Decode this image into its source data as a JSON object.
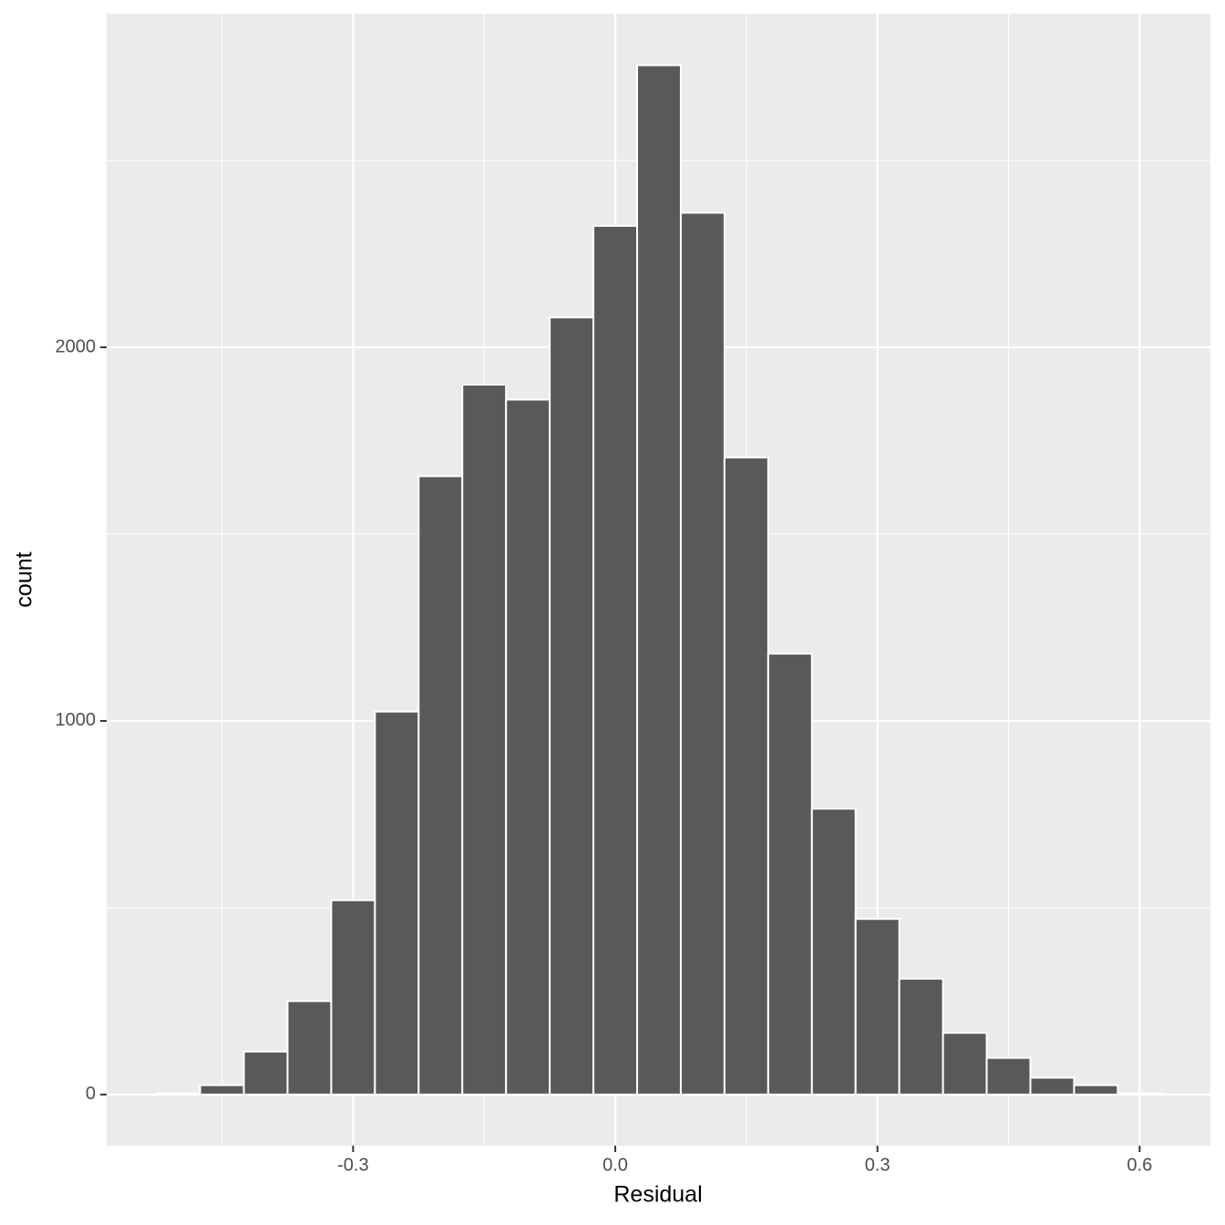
{
  "chart_data": {
    "type": "histogram",
    "x_label": "Residual",
    "y_label": "count",
    "bins": [
      -0.525,
      -0.475,
      -0.425,
      -0.375,
      -0.325,
      -0.275,
      -0.225,
      -0.175,
      -0.125,
      -0.075,
      -0.025,
      0.025,
      0.075,
      0.125,
      0.175,
      0.225,
      0.275,
      0.325,
      0.375,
      0.425,
      0.475,
      0.525,
      0.575,
      0.625
    ],
    "values": [
      3,
      25,
      115,
      250,
      520,
      1025,
      1655,
      1900,
      1860,
      2080,
      2325,
      2755,
      2360,
      1705,
      1180,
      765,
      470,
      310,
      165,
      98,
      45,
      25,
      3
    ],
    "color": "#595959",
    "xlim": [
      -0.582,
      0.681
    ],
    "ylim": [
      -137,
      2893
    ],
    "xticks": [
      -0.3,
      {
        "value": 0,
        "label": "0.0"
      },
      0.3,
      0.6
    ],
    "yticks": [
      0,
      1000,
      2000
    ],
    "x_minor_ticks": [
      -0.45,
      -0.15,
      0.15,
      0.45
    ],
    "y_minor_ticks": [
      500,
      1500,
      2500
    ],
    "grid": true
  }
}
